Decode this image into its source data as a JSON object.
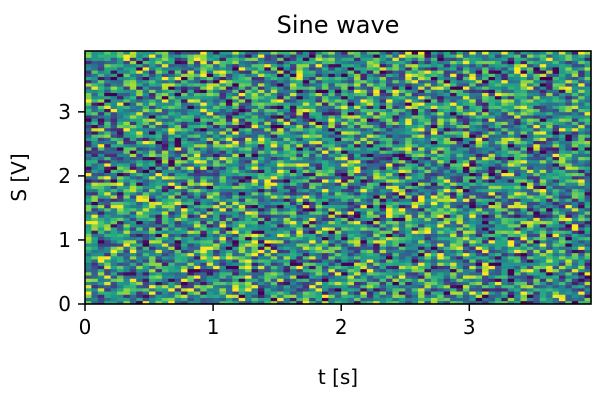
{
  "chart_data": {
    "type": "heatmap",
    "title": "Sine wave",
    "xlabel": "t [s]",
    "ylabel": "S [V]",
    "xlim": [
      0,
      3.95
    ],
    "ylim": [
      0,
      3.95
    ],
    "xticks": [
      0,
      1,
      2,
      3
    ],
    "yticks": [
      0,
      1,
      2,
      3
    ],
    "grid": false,
    "colormap": "viridis",
    "value_range": [
      0,
      1
    ],
    "cell_size": [
      0.05,
      0.05
    ],
    "n_cols": 79,
    "n_rows": 79,
    "values": "pseudo-random noise field in the range 0-1 (Gaussian-like, centred near 0.5)"
  },
  "colors": {
    "viridis_low": "#440154",
    "viridis_mid": "#21918c",
    "viridis_high": "#fde725"
  }
}
